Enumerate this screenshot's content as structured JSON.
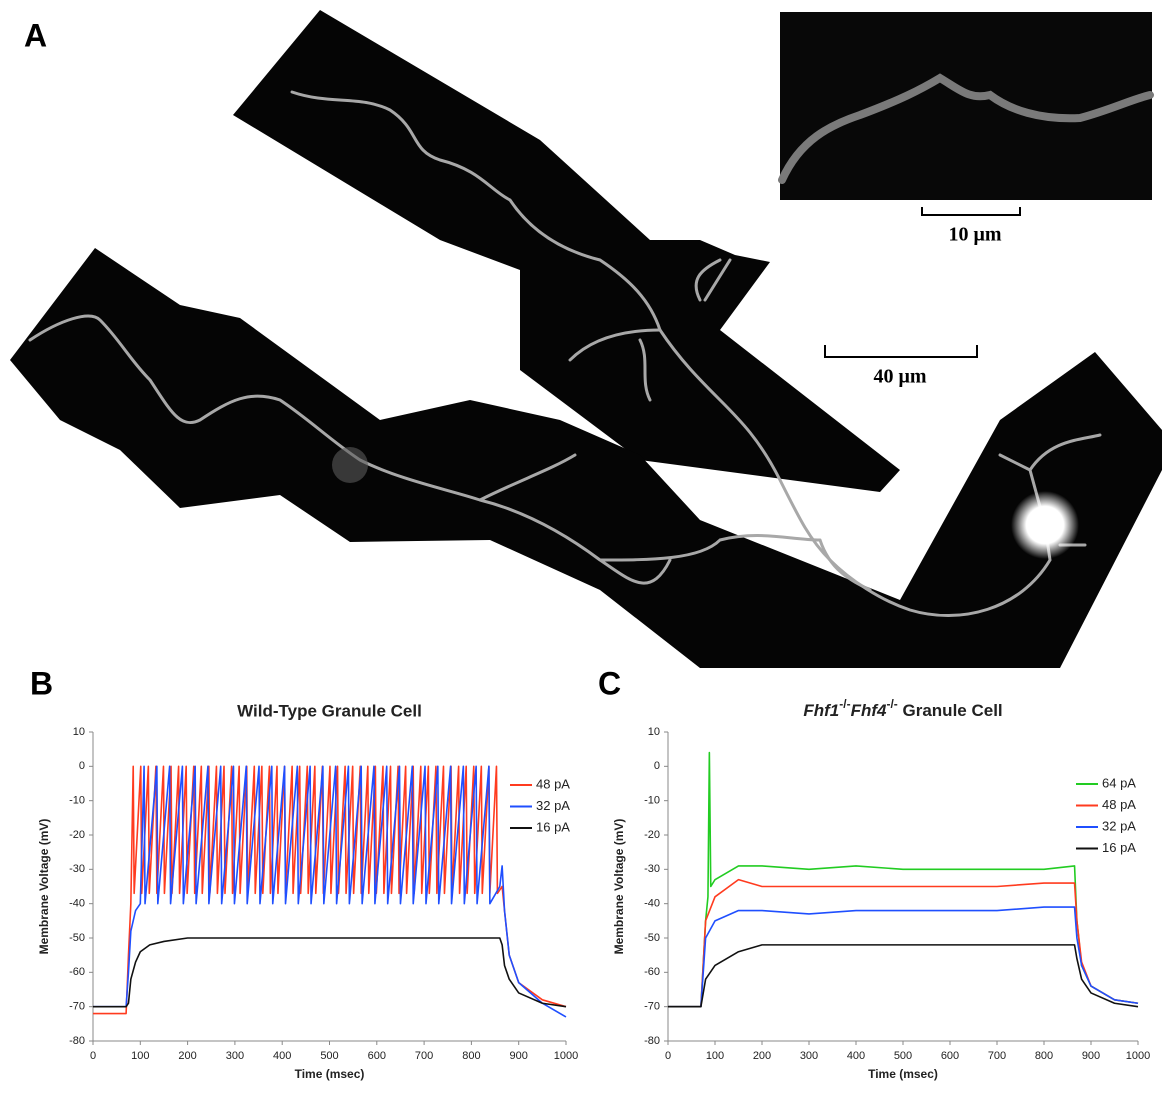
{
  "figure": {
    "panel_labels": [
      "A",
      "B",
      "C"
    ],
    "scale_bars": [
      "10 μm",
      "40 μm"
    ]
  },
  "chart_data": [
    {
      "type": "line",
      "title": "Wild-Type Granule Cell",
      "x_label": "Time (msec)",
      "y_label": "Membrane Voltage (mV)",
      "xlim": [
        0,
        1000
      ],
      "xticks": [
        0,
        100,
        200,
        300,
        400,
        500,
        600,
        700,
        800,
        900,
        1000
      ],
      "ylim": [
        -80,
        10
      ],
      "yticks": [
        -80,
        -70,
        -60,
        -50,
        -40,
        -30,
        -20,
        -10,
        0,
        10
      ],
      "legend": "right",
      "series": [
        {
          "name": "48 pA",
          "color": "#ff3b1f",
          "x": [
            0,
            70,
            75,
            80,
            85,
            87,
            101,
            103,
            117,
            119,
            133,
            135,
            149,
            151,
            165,
            167,
            181,
            183,
            197,
            199,
            213,
            215,
            229,
            231,
            245,
            247,
            261,
            263,
            277,
            279,
            293,
            295,
            309,
            311,
            325,
            327,
            341,
            343,
            357,
            359,
            373,
            375,
            389,
            391,
            405,
            407,
            421,
            423,
            437,
            439,
            453,
            455,
            469,
            471,
            485,
            487,
            501,
            503,
            517,
            519,
            533,
            535,
            549,
            551,
            565,
            567,
            581,
            583,
            597,
            599,
            613,
            615,
            629,
            631,
            645,
            647,
            661,
            663,
            677,
            679,
            693,
            695,
            709,
            711,
            725,
            727,
            741,
            743,
            757,
            759,
            773,
            775,
            789,
            791,
            805,
            807,
            821,
            823,
            837,
            839,
            853,
            855,
            865,
            870,
            880,
            900,
            950,
            1000
          ],
          "values": [
            -72,
            -72,
            -55,
            -40,
            0,
            -37,
            0,
            -37,
            0,
            -37,
            0,
            -37,
            0,
            -37,
            0,
            -37,
            0,
            -37,
            0,
            -37,
            0,
            -37,
            0,
            -37,
            0,
            -37,
            0,
            -37,
            0,
            -37,
            0,
            -37,
            0,
            -37,
            0,
            -37,
            0,
            -37,
            0,
            -37,
            0,
            -37,
            0,
            -37,
            0,
            -37,
            0,
            -37,
            0,
            -37,
            0,
            -37,
            0,
            -37,
            0,
            -37,
            0,
            -37,
            0,
            -37,
            0,
            -37,
            0,
            -37,
            0,
            -37,
            0,
            -37,
            0,
            -37,
            0,
            -37,
            0,
            -37,
            0,
            -37,
            0,
            -37,
            0,
            -37,
            0,
            -37,
            0,
            -37,
            0,
            -37,
            0,
            -37,
            0,
            -37,
            0,
            -37,
            0,
            -37,
            0,
            -37,
            0,
            -37,
            0,
            -37,
            0,
            -37,
            -35,
            -42,
            -55,
            -63,
            -68,
            -70
          ]
        },
        {
          "name": "32 pA",
          "color": "#1f4fff",
          "x": [
            0,
            70,
            75,
            80,
            90,
            100,
            108,
            110,
            135,
            137,
            162,
            164,
            189,
            191,
            216,
            218,
            243,
            245,
            270,
            272,
            297,
            299,
            324,
            326,
            351,
            353,
            378,
            380,
            405,
            407,
            432,
            434,
            459,
            461,
            486,
            488,
            513,
            515,
            540,
            542,
            567,
            569,
            594,
            596,
            621,
            623,
            648,
            650,
            675,
            677,
            702,
            704,
            729,
            731,
            756,
            758,
            783,
            785,
            810,
            812,
            837,
            839,
            860,
            865,
            870,
            880,
            900,
            950,
            1000
          ],
          "values": [
            -70,
            -70,
            -60,
            -48,
            -42,
            -40,
            0,
            -40,
            0,
            -40,
            0,
            -40,
            0,
            -40,
            0,
            -40,
            0,
            -40,
            0,
            -40,
            0,
            -40,
            0,
            -40,
            0,
            -40,
            0,
            -40,
            0,
            -40,
            0,
            -40,
            0,
            -40,
            0,
            -40,
            0,
            -40,
            0,
            -40,
            0,
            -40,
            0,
            -40,
            0,
            -40,
            0,
            -40,
            0,
            -40,
            0,
            -40,
            0,
            -40,
            0,
            -40,
            0,
            -40,
            0,
            -40,
            0,
            -40,
            -35,
            -29,
            -42,
            -55,
            -63,
            -69,
            -73
          ]
        },
        {
          "name": "16 pA",
          "color": "#111111",
          "x": [
            0,
            70,
            75,
            80,
            90,
            100,
            120,
            150,
            200,
            300,
            400,
            500,
            600,
            700,
            800,
            860,
            865,
            870,
            880,
            900,
            950,
            1000
          ],
          "values": [
            -70,
            -70,
            -69,
            -62,
            -57,
            -54,
            -52,
            -51,
            -50,
            -50,
            -50,
            -50,
            -50,
            -50,
            -50,
            -50,
            -52,
            -58,
            -62,
            -66,
            -69,
            -70
          ]
        }
      ]
    },
    {
      "type": "line",
      "title_parts": [
        "Fhf1",
        "-/-",
        "Fhf4",
        "-/-",
        " Granule Cell"
      ],
      "x_label": "Time (msec)",
      "y_label": "Membrane Voltage (mV)",
      "xlim": [
        0,
        1000
      ],
      "xticks": [
        0,
        100,
        200,
        300,
        400,
        500,
        600,
        700,
        800,
        900,
        1000
      ],
      "ylim": [
        -80,
        10
      ],
      "yticks": [
        -80,
        -70,
        -60,
        -50,
        -40,
        -30,
        -20,
        -10,
        0,
        10
      ],
      "legend": "right",
      "series": [
        {
          "name": "64 pA",
          "color": "#22cc22",
          "x": [
            0,
            70,
            80,
            85,
            88,
            91,
            100,
            150,
            200,
            300,
            400,
            500,
            600,
            700,
            800,
            865,
            870,
            880,
            900,
            950,
            1000
          ],
          "values": [
            -70,
            -70,
            -45,
            -38,
            4,
            -35,
            -33,
            -29,
            -29,
            -30,
            -29,
            -30,
            -30,
            -30,
            -30,
            -29,
            -45,
            -58,
            -64,
            -68,
            -69
          ]
        },
        {
          "name": "48 pA",
          "color": "#ff3b1f",
          "x": [
            0,
            70,
            80,
            100,
            150,
            200,
            300,
            400,
            500,
            600,
            700,
            800,
            865,
            870,
            880,
            900,
            950,
            1000
          ],
          "values": [
            -70,
            -70,
            -45,
            -38,
            -33,
            -35,
            -35,
            -35,
            -35,
            -35,
            -35,
            -34,
            -34,
            -45,
            -57,
            -64,
            -68,
            -69
          ]
        },
        {
          "name": "32 pA",
          "color": "#1f4fff",
          "x": [
            0,
            70,
            80,
            100,
            150,
            200,
            300,
            400,
            500,
            600,
            700,
            800,
            865,
            870,
            880,
            900,
            950,
            1000
          ],
          "values": [
            -70,
            -70,
            -50,
            -45,
            -42,
            -42,
            -43,
            -42,
            -42,
            -42,
            -42,
            -41,
            -41,
            -50,
            -58,
            -64,
            -68,
            -69
          ]
        },
        {
          "name": "16 pA",
          "color": "#111111",
          "x": [
            0,
            70,
            80,
            100,
            150,
            200,
            300,
            400,
            500,
            600,
            700,
            800,
            865,
            870,
            880,
            900,
            950,
            1000
          ],
          "values": [
            -70,
            -70,
            -62,
            -58,
            -54,
            -52,
            -52,
            -52,
            -52,
            -52,
            -52,
            -52,
            -52,
            -56,
            -62,
            -66,
            -69,
            -70
          ]
        }
      ]
    }
  ]
}
